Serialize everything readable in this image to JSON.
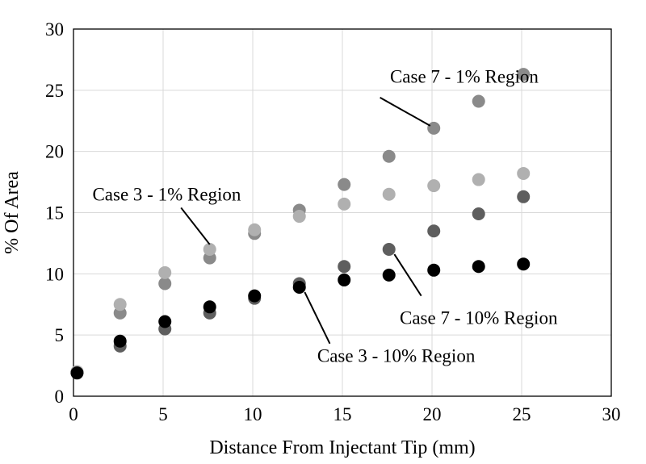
{
  "chart_data": {
    "type": "scatter",
    "title": "",
    "xlabel": "Distance From Injectant Tip (mm)",
    "ylabel": "% Of Area",
    "xlim": [
      0,
      30
    ],
    "ylim": [
      0,
      30
    ],
    "xticks": [
      0,
      5,
      10,
      15,
      20,
      25,
      30
    ],
    "yticks": [
      0,
      5,
      10,
      15,
      20,
      25,
      30
    ],
    "grid": "vertical-and-horizontal",
    "legend": "none",
    "series": [
      {
        "name": "Case 7 - 1% Region",
        "color": "#8a8a8a",
        "x": [
          0.2,
          2.6,
          5.1,
          7.6,
          10.1,
          12.6,
          15.1,
          17.6,
          20.1,
          22.6,
          25.1
        ],
        "y": [
          2.0,
          6.8,
          9.2,
          11.3,
          13.3,
          15.2,
          17.3,
          19.6,
          21.9,
          24.1,
          26.3
        ]
      },
      {
        "name": "Case 3 - 1% Region",
        "color": "#b0b0b0",
        "x": [
          0.2,
          2.6,
          5.1,
          7.6,
          10.1,
          12.6,
          15.1,
          17.6,
          20.1,
          22.6,
          25.1
        ],
        "y": [
          2.0,
          7.5,
          10.1,
          12.0,
          13.6,
          14.7,
          15.7,
          16.5,
          17.2,
          17.7,
          18.2
        ]
      },
      {
        "name": "Case 7 - 10% Region",
        "color": "#5e5e5e",
        "x": [
          0.2,
          2.6,
          5.1,
          7.6,
          10.1,
          12.6,
          15.1,
          17.6,
          20.1,
          22.6,
          25.1
        ],
        "y": [
          1.9,
          4.1,
          5.5,
          6.8,
          8.0,
          9.2,
          10.6,
          12.0,
          13.5,
          14.9,
          16.3
        ]
      },
      {
        "name": "Case 3 - 10% Region",
        "color": "#000000",
        "x": [
          0.2,
          2.6,
          5.1,
          7.6,
          10.1,
          12.6,
          15.1,
          17.6,
          20.1,
          22.6,
          25.1
        ],
        "y": [
          1.9,
          4.5,
          6.1,
          7.3,
          8.2,
          8.9,
          9.5,
          9.9,
          10.3,
          10.6,
          10.8
        ]
      }
    ],
    "annotations": [
      {
        "text": "Case 7 - 1% Region",
        "text_x": 21.8,
        "text_y": 25.6,
        "anchor": "middle",
        "line_from": [
          17.1,
          24.4
        ],
        "line_to": [
          19.9,
          22.1
        ]
      },
      {
        "text": "Case 3 - 1% Region",
        "text_x": 5.2,
        "text_y": 16.0,
        "anchor": "middle",
        "line_from": [
          6.0,
          15.4
        ],
        "line_to": [
          7.6,
          12.4
        ]
      },
      {
        "text": "Case 7 - 10% Region",
        "text_x": 22.6,
        "text_y": 5.9,
        "anchor": "middle",
        "line_from": [
          19.4,
          8.2
        ],
        "line_to": [
          17.9,
          11.6
        ]
      },
      {
        "text": "Case 3 - 10% Region",
        "text_x": 18.0,
        "text_y": 2.8,
        "anchor": "middle",
        "line_from": [
          14.3,
          4.3
        ],
        "line_to": [
          12.9,
          8.5
        ]
      }
    ]
  }
}
